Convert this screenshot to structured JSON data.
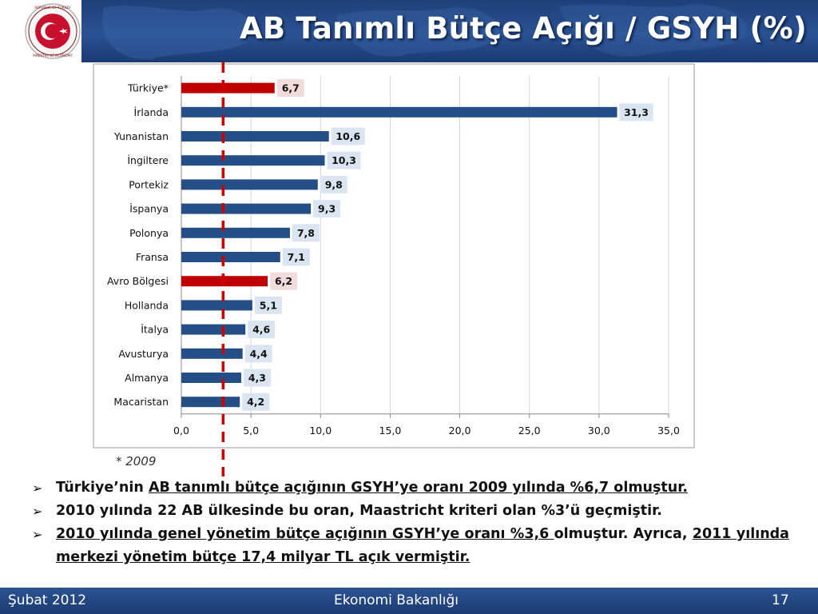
{
  "header": {
    "title": "AB Tanımlı Bütçe Açığı / GSYH (%)"
  },
  "logo": {
    "text": "REPUBLIC OF TURKEY MINISTRY OF ECONOMY",
    "icon": "crescent-star-emblem"
  },
  "colors": {
    "bar_default": "#234e86",
    "bar_highlight": "#c00000",
    "label_bg_default": "#dbe5f1",
    "label_bg_highlight": "#f2dcdb",
    "reference_line": "#d40000",
    "header": "#2a5294"
  },
  "chart_data": {
    "type": "bar",
    "orientation": "horizontal",
    "categories": [
      "Türkiye*",
      "İrlanda",
      "Yunanistan",
      "İngiltere",
      "Portekiz",
      "İspanya",
      "Polonya",
      "Fransa",
      "Avro Bölgesi",
      "Hollanda",
      "İtalya",
      "Avusturya",
      "Almanya",
      "Macaristan"
    ],
    "values": [
      6.7,
      31.3,
      10.6,
      10.3,
      9.8,
      9.3,
      7.8,
      7.1,
      6.2,
      5.1,
      4.6,
      4.4,
      4.3,
      4.2
    ],
    "value_labels": [
      "6,7",
      "31,3",
      "10,6",
      "10,3",
      "9,8",
      "9,3",
      "7,8",
      "7,1",
      "6,2",
      "5,1",
      "4,6",
      "4,4",
      "4,3",
      "4,2"
    ],
    "highlighted": [
      "Türkiye*",
      "Avro Bölgesi"
    ],
    "xlim": [
      0,
      35
    ],
    "xticks": [
      0,
      5,
      10,
      15,
      20,
      25,
      30,
      35
    ],
    "xtick_labels": [
      "0,0",
      "5,0",
      "10,0",
      "15,0",
      "20,0",
      "25,0",
      "30,0",
      "35,0"
    ],
    "reference_line": 3,
    "grid": "vertical",
    "title": "",
    "xlabel": "",
    "ylabel": ""
  },
  "footnote": "* 2009",
  "bullets": [
    {
      "parts": [
        {
          "t": "Türkiye’nin ",
          "u": false
        },
        {
          "t": "AB tanımlı bütçe açığının GSYH’ye oranı 2009 yılında %6,7 olmuştur.",
          "u": true
        }
      ]
    },
    {
      "parts": [
        {
          "t": "2010 yılında 22 AB ülkesinde bu oran, Maastricht kriteri olan %3’ü geçmiştir.",
          "u": false
        }
      ]
    },
    {
      "parts": [
        {
          "t": "2010 yılında genel yönetim bütçe açığının GSYH’ye oranı %3,6 ",
          "u": true
        },
        {
          "t": "olmuştur. Ayrıca, ",
          "u": false
        },
        {
          "t": "2011 yılında merkezi yönetim bütçe 17,4 milyar TL açık vermiştir.",
          "u": true
        }
      ]
    }
  ],
  "footer": {
    "date": "Şubat 2012",
    "org": "Ekonomi Bakanlığı",
    "page": "17"
  }
}
